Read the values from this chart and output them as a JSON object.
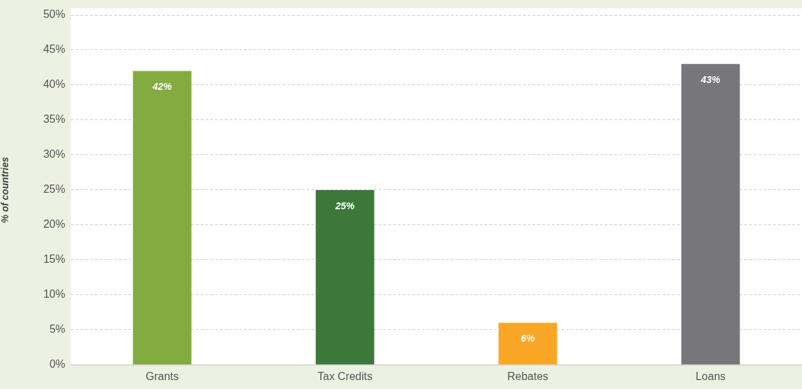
{
  "chart_data": {
    "type": "bar",
    "ylabel": "% of countries",
    "categories": [
      "Grants",
      "Tax Credits",
      "Rebates",
      "Loans"
    ],
    "values": [
      42,
      25,
      6,
      43
    ],
    "colors": [
      "#82ac40",
      "#3b7839",
      "#f9a627",
      "#77777b"
    ],
    "value_labels": [
      "42%",
      "25%",
      "6%",
      "43%"
    ],
    "ylim": [
      0,
      50
    ],
    "yticks": [
      {
        "value": 0,
        "label": "0%"
      },
      {
        "value": 5,
        "label": "5%"
      },
      {
        "value": 10,
        "label": "10%"
      },
      {
        "value": 15,
        "label": "15%"
      },
      {
        "value": 20,
        "label": "20%"
      },
      {
        "value": 25,
        "label": "25%"
      },
      {
        "value": 30,
        "label": "30%"
      },
      {
        "value": 35,
        "label": "35%"
      },
      {
        "value": 40,
        "label": "40%"
      },
      {
        "value": 45,
        "label": "45%"
      },
      {
        "value": 50,
        "label": "50%"
      }
    ],
    "grid": "y",
    "legend": false
  }
}
